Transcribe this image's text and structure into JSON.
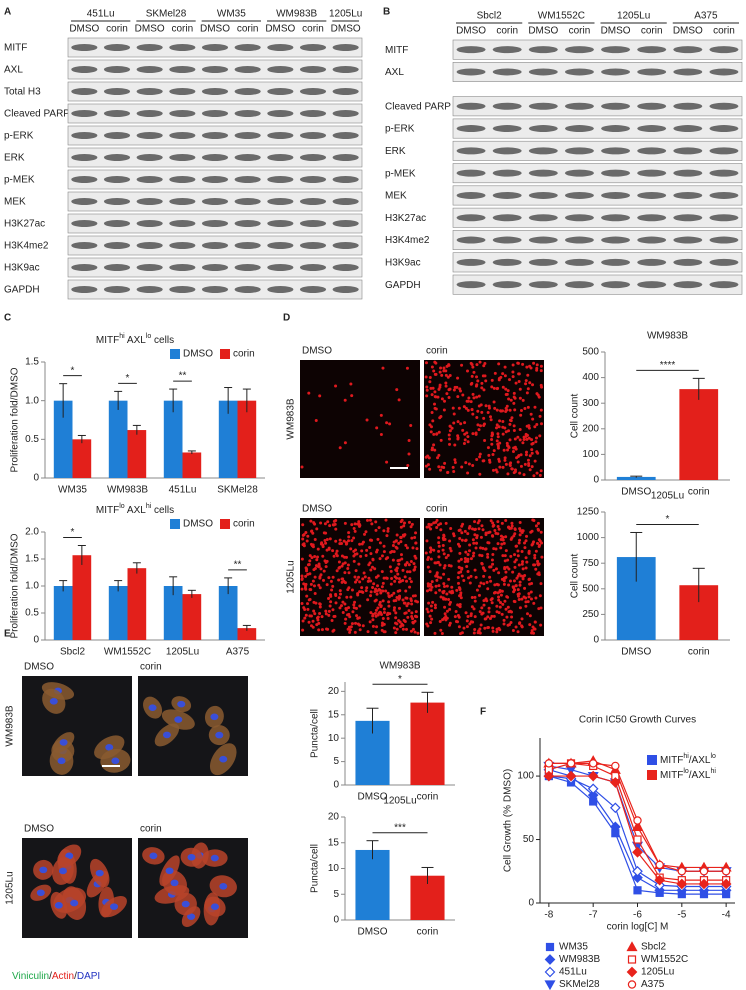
{
  "panel_labels": [
    "A",
    "B",
    "C",
    "D",
    "E",
    "F"
  ],
  "blots": [
    {
      "groups": [
        {
          "cell_line": "451Lu",
          "treatments": [
            "DMSO",
            "corin"
          ]
        },
        {
          "cell_line": "SKMel28",
          "treatments": [
            "DMSO",
            "corin"
          ]
        },
        {
          "cell_line": "WM35",
          "treatments": [
            "DMSO",
            "corin"
          ]
        },
        {
          "cell_line": "WM983B",
          "treatments": [
            "DMSO",
            "corin"
          ]
        },
        {
          "cell_line": "1205Lu",
          "treatments": [
            "DMSO"
          ]
        }
      ],
      "rows": [
        "MITF",
        "AXL",
        "Total H3",
        "Cleaved PARP",
        "p-ERK",
        "ERK",
        "p-MEK",
        "MEK",
        "H3K27ac",
        "H3K4me2",
        "H3K9ac",
        "GAPDH"
      ]
    },
    {
      "groups": [
        {
          "cell_line": "Sbcl2",
          "treatments": [
            "DMSO",
            "corin"
          ]
        },
        {
          "cell_line": "WM1552C",
          "treatments": [
            "DMSO",
            "corin"
          ]
        },
        {
          "cell_line": "1205Lu",
          "treatments": [
            "DMSO",
            "corin"
          ]
        },
        {
          "cell_line": "A375",
          "treatments": [
            "DMSO",
            "corin"
          ]
        }
      ],
      "rows": [
        "MITF",
        "AXL",
        "Cleaved PARP",
        "p-ERK",
        "ERK",
        "p-MEK",
        "MEK",
        "H3K27ac",
        "H3K4me2",
        "H3K9ac",
        "GAPDH"
      ]
    }
  ],
  "images": [
    {
      "columns": [
        "DMSO",
        "corin"
      ],
      "rows": [
        "WM983B",
        "1205Lu"
      ]
    },
    {
      "columns": [
        "DMSO",
        "corin"
      ],
      "rows": [
        "WM983B",
        "1205Lu"
      ]
    }
  ],
  "stain_legend": [
    {
      "text": "Viniculin",
      "color": "#1fa84a"
    },
    {
      "text": "/",
      "color": "#222222"
    },
    {
      "text": "Actin",
      "color": "#e3201b"
    },
    {
      "text": "/",
      "color": "#222222"
    },
    {
      "text": "DAPI",
      "color": "#2030c0"
    }
  ],
  "chart_data": [
    {
      "type": "bar",
      "title": [
        {
          "text": "MITF"
        },
        {
          "text": "hi",
          "sup": true
        },
        {
          "text": " AXL"
        },
        {
          "text": "lo",
          "sup": true
        },
        {
          "text": " cells"
        }
      ],
      "ylabel": "Proliferation fold/DMSO",
      "categories": [
        "WM35",
        "WM983B",
        "451Lu",
        "SKMel28"
      ],
      "series": [
        {
          "name": "DMSO",
          "color": "#1f7fd6",
          "values": [
            1,
            1,
            1,
            1
          ],
          "errors": [
            0.22,
            0.12,
            0.15,
            0.17
          ]
        },
        {
          "name": "corin",
          "color": "#e3201b",
          "values": [
            0.5,
            0.62,
            0.33,
            1.0
          ],
          "errors": [
            0.05,
            0.06,
            0.02,
            0.15
          ]
        }
      ],
      "significance": [
        "*",
        "*",
        "**",
        null
      ],
      "ylim": [
        0,
        1.5
      ],
      "yticks": [
        0,
        0.5,
        {
          "value": 1,
          "label": "1.0"
        },
        1.5
      ],
      "legend": "top-right"
    },
    {
      "type": "bar",
      "title": [
        {
          "text": "MITF"
        },
        {
          "text": "lo",
          "sup": true
        },
        {
          "text": " AXL"
        },
        {
          "text": "hi",
          "sup": true
        },
        {
          "text": " cells"
        }
      ],
      "ylabel": "Proliferation fold/DMSO",
      "categories": [
        "Sbcl2",
        "WM1552C",
        "1205Lu",
        "A375"
      ],
      "series": [
        {
          "name": "DMSO",
          "color": "#1f7fd6",
          "values": [
            1,
            1,
            1,
            1
          ],
          "errors": [
            0.1,
            0.1,
            0.17,
            0.15
          ]
        },
        {
          "name": "corin",
          "color": "#e3201b",
          "values": [
            1.57,
            1.33,
            0.85,
            0.22
          ],
          "errors": [
            0.18,
            0.1,
            0.07,
            0.05
          ]
        }
      ],
      "significance": [
        "*",
        null,
        null,
        "**"
      ],
      "ylim": [
        0,
        2
      ],
      "yticks": [
        0,
        0.5,
        {
          "value": 1,
          "label": "1.0"
        },
        1.5,
        {
          "value": 2,
          "label": "2.0"
        }
      ],
      "legend": "top-right"
    },
    {
      "type": "bar",
      "title": "WM983B",
      "ylabel": "Cell count",
      "categories": [
        "DMSO",
        "corin"
      ],
      "values": [
        12,
        355
      ],
      "errors": [
        3,
        42
      ],
      "colors": [
        "#1f7fd6",
        "#e3201b"
      ],
      "significance": "****",
      "ylim": [
        0,
        500
      ],
      "yticks": [
        0,
        100,
        200,
        300,
        400,
        500
      ]
    },
    {
      "type": "bar",
      "title": "1205Lu",
      "ylabel": "Cell count",
      "categories": [
        "DMSO",
        "corin"
      ],
      "values": [
        810,
        535
      ],
      "errors": [
        240,
        165
      ],
      "colors": [
        "#1f7fd6",
        "#e3201b"
      ],
      "significance": "*",
      "ylim": [
        0,
        1250
      ],
      "yticks": [
        0,
        250,
        500,
        750,
        1000,
        1250
      ]
    },
    {
      "type": "bar",
      "title": "WM983B",
      "ylabel": "Puncta/cell",
      "categories": [
        "DMSO",
        "corin"
      ],
      "values": [
        13.7,
        17.6
      ],
      "errors": [
        2.7,
        2.2
      ],
      "colors": [
        "#1f7fd6",
        "#e3201b"
      ],
      "significance": "*",
      "ylim": [
        0,
        22
      ],
      "yticks": [
        0,
        5,
        10,
        15,
        20
      ]
    },
    {
      "type": "bar",
      "title": "1205Lu",
      "ylabel": "Puncta/cell",
      "categories": [
        "DMSO",
        "corin"
      ],
      "values": [
        13.6,
        8.6
      ],
      "errors": [
        1.8,
        1.6
      ],
      "colors": [
        "#1f7fd6",
        "#e3201b"
      ],
      "significance": "***",
      "ylim": [
        0,
        20
      ],
      "yticks": [
        0,
        5,
        10,
        15,
        20
      ]
    },
    {
      "type": "line",
      "title": "Corin IC50 Growth Curves",
      "xlabel": "corin log[C] M",
      "ylabel": "Cell Growth (% DMSO)",
      "x": [
        -8,
        -7.5,
        -7,
        -6.5,
        -6,
        -5.5,
        -5,
        -4.5,
        -4
      ],
      "xlim": [
        -8.2,
        -3.8
      ],
      "xticks": [
        -8,
        -7,
        -6,
        -5,
        -4
      ],
      "ylim": [
        0,
        130
      ],
      "yticks": [
        0,
        50,
        100
      ],
      "groups": [
        {
          "label": [
            {
              "text": "MITF"
            },
            {
              "text": "hi",
              "sup": true
            },
            {
              "text": "/AXL"
            },
            {
              "text": "lo",
              "sup": true
            }
          ],
          "color": "#2f4fe6"
        },
        {
          "label": [
            {
              "text": "MITF"
            },
            {
              "text": "lo",
              "sup": true
            },
            {
              "text": "/AXL"
            },
            {
              "text": "hi",
              "sup": true
            }
          ],
          "color": "#e8231c"
        }
      ],
      "series": [
        {
          "name": "WM35",
          "color": "#2f4fe6",
          "marker": "square",
          "values": [
            100,
            95,
            80,
            55,
            10,
            8,
            7,
            7,
            7
          ]
        },
        {
          "name": "WM983B",
          "color": "#2f4fe6",
          "marker": "diamond",
          "values": [
            105,
            100,
            85,
            60,
            20,
            10,
            10,
            10,
            10
          ]
        },
        {
          "name": "451Lu",
          "color": "#2f4fe6",
          "marker": "diamond-open",
          "values": [
            100,
            98,
            90,
            75,
            25,
            14,
            13,
            13,
            13
          ]
        },
        {
          "name": "SKMel28",
          "color": "#2f4fe6",
          "marker": "triangle-down",
          "values": [
            108,
            105,
            100,
            95,
            45,
            28,
            25,
            25,
            25
          ]
        },
        {
          "name": "Sbcl2",
          "color": "#e8231c",
          "marker": "triangle",
          "values": [
            110,
            110,
            112,
            105,
            60,
            30,
            28,
            28,
            28
          ]
        },
        {
          "name": "WM1552C",
          "color": "#e8231c",
          "marker": "square-open",
          "values": [
            105,
            110,
            108,
            100,
            50,
            20,
            18,
            18,
            18
          ]
        },
        {
          "name": "1205Lu",
          "color": "#e8231c",
          "marker": "diamond",
          "values": [
            100,
            100,
            100,
            95,
            40,
            18,
            15,
            15,
            15
          ]
        },
        {
          "name": "A375",
          "color": "#e8231c",
          "marker": "circle-open",
          "values": [
            110,
            110,
            110,
            108,
            65,
            30,
            25,
            25,
            25
          ]
        }
      ]
    }
  ]
}
